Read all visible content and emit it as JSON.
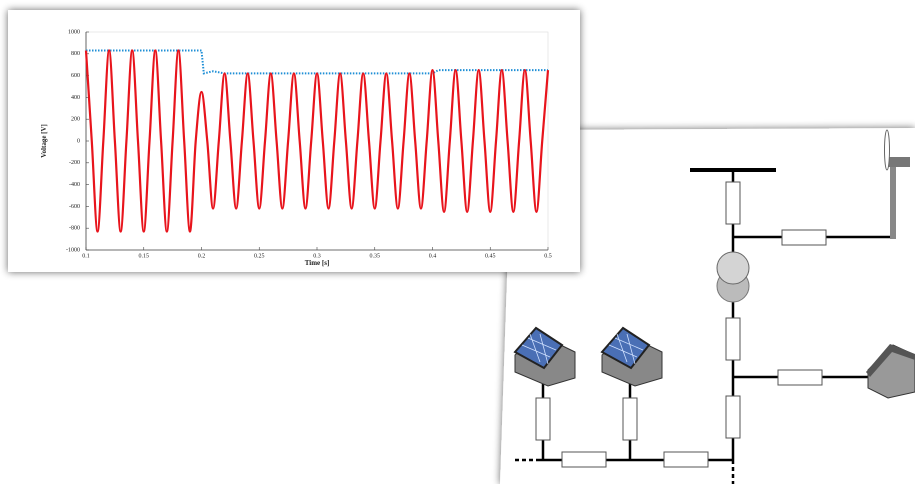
{
  "chart_data": {
    "type": "line",
    "y_label": "Voltage [V]",
    "x_label": "Time [s]",
    "xlim": [
      0.1,
      0.5
    ],
    "xticks": [
      0.1,
      0.15,
      0.2,
      0.25,
      0.3,
      0.35,
      0.4,
      0.45,
      0.5
    ],
    "ylim": [
      -1000,
      1000
    ],
    "yticks": [
      -1000,
      -800,
      -600,
      -400,
      -200,
      0,
      200,
      400,
      600,
      800,
      1000
    ],
    "series": [
      {
        "color": "#1f8fd6",
        "style": "dotted",
        "x": [
          0.1,
          0.2,
          0.202,
          0.21,
          0.22,
          0.4,
          0.405,
          0.5
        ],
        "values": [
          830,
          830,
          620,
          640,
          620,
          620,
          650,
          650
        ]
      },
      {
        "color": "#e8141c",
        "style": "solid",
        "x": [
          0.1,
          0.105,
          0.11,
          0.115,
          0.12,
          0.125,
          0.13,
          0.135,
          0.14,
          0.145,
          0.15,
          0.155,
          0.16,
          0.165,
          0.17,
          0.175,
          0.18,
          0.185,
          0.19,
          0.195,
          0.2,
          0.205,
          0.21,
          0.215,
          0.22,
          0.225,
          0.23,
          0.235,
          0.24,
          0.245,
          0.25,
          0.255,
          0.26,
          0.265,
          0.27,
          0.275,
          0.28,
          0.285,
          0.29,
          0.295,
          0.3,
          0.305,
          0.31,
          0.315,
          0.32,
          0.325,
          0.33,
          0.335,
          0.34,
          0.345,
          0.35,
          0.355,
          0.36,
          0.365,
          0.37,
          0.375,
          0.38,
          0.385,
          0.39,
          0.395,
          0.4,
          0.405,
          0.41,
          0.415,
          0.42,
          0.425,
          0.43,
          0.435,
          0.44,
          0.445,
          0.45,
          0.455,
          0.46,
          0.465,
          0.47,
          0.475,
          0.48,
          0.485,
          0.49,
          0.495,
          0.5
        ],
        "values": [
          830,
          0,
          -830,
          0,
          830,
          0,
          -830,
          0,
          830,
          0,
          -830,
          0,
          830,
          0,
          -830,
          0,
          830,
          0,
          -830,
          0,
          450,
          0,
          -620,
          0,
          620,
          0,
          -620,
          0,
          620,
          0,
          -620,
          0,
          620,
          0,
          -620,
          0,
          620,
          0,
          -620,
          0,
          620,
          0,
          -620,
          0,
          620,
          0,
          -620,
          0,
          620,
          0,
          -620,
          0,
          620,
          0,
          -620,
          0,
          620,
          0,
          -620,
          0,
          650,
          0,
          -650,
          0,
          650,
          0,
          -650,
          0,
          650,
          0,
          -650,
          0,
          650,
          0,
          -650,
          0,
          650,
          0,
          -650,
          0,
          650
        ]
      }
    ]
  }
}
